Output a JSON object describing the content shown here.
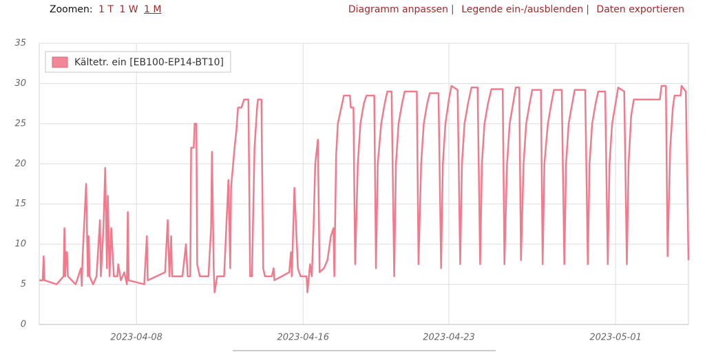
{
  "toolbar": {
    "zoom_label": "Zoomen:",
    "zoom_options": [
      "1 T",
      "1 W",
      "1 M"
    ],
    "separator": "|",
    "actions": [
      "Diagramm anpassen",
      "Legende ein-/ausblenden",
      "Daten exportieren"
    ]
  },
  "chart_data": {
    "type": "line",
    "grid": true,
    "legend": "top-left",
    "xlim": [
      "2023-04-03 08:00",
      "2023-05-04 12:00"
    ],
    "xticks": [
      "2023-04-08",
      "2023-04-16",
      "2023-04-23",
      "2023-05-01"
    ],
    "ylim": [
      0,
      35
    ],
    "yticks": [
      0,
      5,
      10,
      15,
      20,
      25,
      30,
      35
    ],
    "x": [
      "2023-04-03 08:00",
      "2023-04-03 12:00",
      "2023-04-03 13:00",
      "2023-04-03 14:00",
      "2023-04-04 04:00",
      "2023-04-04 12:00",
      "2023-04-04 13:00",
      "2023-04-04 14:00",
      "2023-04-04 15:00",
      "2023-04-04 16:00",
      "2023-04-04 17:00",
      "2023-04-05 02:00",
      "2023-04-05 08:00",
      "2023-04-05 09:00",
      "2023-04-05 10:00",
      "2023-04-05 14:00",
      "2023-04-05 16:00",
      "2023-04-05 17:00",
      "2023-04-05 18:00",
      "2023-04-05 22:00",
      "2023-04-06 02:00",
      "2023-04-06 06:00",
      "2023-04-06 07:00",
      "2023-04-06 10:00",
      "2023-04-06 12:00",
      "2023-04-06 14:00",
      "2023-04-06 15:00",
      "2023-04-06 17:00",
      "2023-04-06 19:00",
      "2023-04-06 22:00",
      "2023-04-07 02:00",
      "2023-04-07 03:00",
      "2023-04-07 06:00",
      "2023-04-07 10:00",
      "2023-04-07 13:00",
      "2023-04-07 14:00",
      "2023-04-07 15:00",
      "2023-04-08 09:00",
      "2023-04-08 12:00",
      "2023-04-08 13:00",
      "2023-04-09 09:00",
      "2023-04-09 12:00",
      "2023-04-09 14:00",
      "2023-04-09 16:00",
      "2023-04-09 17:00",
      "2023-04-10 05:00",
      "2023-04-10 09:00",
      "2023-04-10 11:00",
      "2023-04-10 14:00",
      "2023-04-10 15:00",
      "2023-04-10 18:00",
      "2023-04-10 19:00",
      "2023-04-10 21:00",
      "2023-04-10 22:00",
      "2023-04-11 01:00",
      "2023-04-11 11:00",
      "2023-04-11 14:00",
      "2023-04-11 15:00",
      "2023-04-11 17:00",
      "2023-04-11 18:00",
      "2023-04-11 21:00",
      "2023-04-12 05:00",
      "2023-04-12 10:00",
      "2023-04-12 12:00",
      "2023-04-12 13:00",
      "2023-04-12 17:00",
      "2023-04-12 19:00",
      "2023-04-12 21:00",
      "2023-04-13 01:00",
      "2023-04-13 04:00",
      "2023-04-13 09:00",
      "2023-04-13 11:00",
      "2023-04-13 13:00",
      "2023-04-13 16:00",
      "2023-04-13 19:00",
      "2023-04-13 20:00",
      "2023-04-14 00:00",
      "2023-04-14 02:00",
      "2023-04-14 04:00",
      "2023-04-14 12:00",
      "2023-04-14 14:00",
      "2023-04-14 15:00",
      "2023-04-15 08:00",
      "2023-04-15 10:00",
      "2023-04-15 11:00",
      "2023-04-15 14:00",
      "2023-04-15 18:00",
      "2023-04-15 21:00",
      "2023-04-16 04:00",
      "2023-04-16 05:00",
      "2023-04-16 08:00",
      "2023-04-16 10:00",
      "2023-04-16 12:00",
      "2023-04-16 14:00",
      "2023-04-16 17:00",
      "2023-04-16 19:00",
      "2023-04-17 00:00",
      "2023-04-17 04:00",
      "2023-04-17 08:00",
      "2023-04-17 11:00",
      "2023-04-17 12:00",
      "2023-04-17 14:00",
      "2023-04-17 16:00",
      "2023-04-17 20:00",
      "2023-04-17 23:00",
      "2023-04-18 06:00",
      "2023-04-18 07:00",
      "2023-04-18 10:00",
      "2023-04-18 11:00",
      "2023-04-18 12:00",
      "2023-04-18 15:00",
      "2023-04-18 18:00",
      "2023-04-18 22:00",
      "2023-04-19 01:00",
      "2023-04-19 10:00",
      "2023-04-19 12:00",
      "2023-04-19 14:00",
      "2023-04-19 18:00",
      "2023-04-19 22:00",
      "2023-04-20 01:00",
      "2023-04-20 06:00",
      "2023-04-20 09:00",
      "2023-04-20 11:00",
      "2023-04-20 14:00",
      "2023-04-20 18:00",
      "2023-04-20 21:00",
      "2023-04-21 11:00",
      "2023-04-21 13:00",
      "2023-04-21 16:00",
      "2023-04-21 19:00",
      "2023-04-21 23:00",
      "2023-04-22 02:00",
      "2023-04-22 12:00",
      "2023-04-22 15:00",
      "2023-04-22 17:00",
      "2023-04-22 20:00",
      "2023-04-23 00:00",
      "2023-04-23 03:00",
      "2023-04-23 10:00",
      "2023-04-23 13:00",
      "2023-04-23 15:00",
      "2023-04-23 18:00",
      "2023-04-23 22:00",
      "2023-04-24 02:00",
      "2023-04-24 09:00",
      "2023-04-24 12:00",
      "2023-04-24 14:00",
      "2023-04-24 17:00",
      "2023-04-24 21:00",
      "2023-04-25 01:00",
      "2023-04-25 14:00",
      "2023-04-25 16:00",
      "2023-04-25 19:00",
      "2023-04-25 22:00",
      "2023-04-26 02:00",
      "2023-04-26 05:00",
      "2023-04-26 09:00",
      "2023-04-26 11:00",
      "2023-04-26 14:00",
      "2023-04-26 17:00",
      "2023-04-26 21:00",
      "2023-04-27 00:00",
      "2023-04-27 10:00",
      "2023-04-27 12:00",
      "2023-04-27 14:00",
      "2023-04-27 18:00",
      "2023-04-27 22:00",
      "2023-04-28 01:00",
      "2023-04-28 10:00",
      "2023-04-28 13:00",
      "2023-04-28 15:00",
      "2023-04-28 18:00",
      "2023-04-28 22:00",
      "2023-04-29 01:00",
      "2023-04-29 13:00",
      "2023-04-29 16:00",
      "2023-04-29 18:00",
      "2023-04-29 21:00",
      "2023-04-30 01:00",
      "2023-04-30 04:00",
      "2023-04-30 12:00",
      "2023-04-30 15:00",
      "2023-04-30 17:00",
      "2023-04-30 20:00",
      "2023-05-01 00:00",
      "2023-05-01 03:00",
      "2023-05-01 10:00",
      "2023-05-01 13:00",
      "2023-05-01 15:00",
      "2023-05-01 18:00",
      "2023-05-01 21:00",
      "2023-05-03 03:00",
      "2023-05-03 05:00",
      "2023-05-03 10:00",
      "2023-05-03 12:00",
      "2023-05-03 15:00",
      "2023-05-03 18:00",
      "2023-05-03 20:00",
      "2023-05-04 03:00",
      "2023-05-04 04:00",
      "2023-05-04 09:00",
      "2023-05-04 12:00"
    ],
    "series": [
      {
        "name": "Kältetr. ein [EB100-EP14-BT10]",
        "color": "#f27a8d",
        "values": [
          5.5,
          5.5,
          8.5,
          5.5,
          5,
          6,
          12,
          6,
          9,
          9,
          6,
          5,
          7,
          4.8,
          8.5,
          17.5,
          6,
          11,
          6,
          5,
          6,
          13,
          6,
          12,
          19.5,
          7,
          16,
          6,
          12,
          6,
          6,
          7.5,
          5.5,
          6.5,
          5,
          14,
          5.5,
          5,
          11,
          5.5,
          6.5,
          13,
          6,
          11,
          6,
          6,
          10,
          6,
          6,
          22,
          22,
          25,
          25,
          7.5,
          6,
          6,
          12,
          21.5,
          7,
          4,
          6,
          6,
          18,
          7,
          17,
          22,
          24,
          27,
          27,
          28,
          28,
          6,
          6,
          22,
          27,
          28,
          28,
          7,
          6,
          6,
          7,
          5.5,
          6.5,
          9,
          6,
          17,
          7,
          6,
          6,
          4,
          7.5,
          6,
          12,
          20,
          23,
          6.5,
          7,
          8,
          11,
          12,
          6,
          21,
          25,
          27,
          28.5,
          28.5,
          27,
          27,
          17,
          7.5,
          20,
          25,
          27.5,
          28.5,
          28.5,
          7,
          20,
          25,
          27.5,
          29,
          29,
          6,
          20,
          25,
          27.5,
          29,
          29,
          7.5,
          20,
          25,
          27.5,
          28.8,
          28.8,
          7,
          20,
          25,
          28,
          29.7,
          29.2,
          7.5,
          20,
          25,
          27.5,
          29.5,
          29.5,
          7.5,
          20,
          25,
          27.5,
          29.3,
          29.3,
          7.5,
          20,
          25,
          27.5,
          29.5,
          29.5,
          8,
          20,
          25,
          27.5,
          29.2,
          29.2,
          7.5,
          20,
          25,
          27.5,
          29.2,
          29.2,
          7.5,
          20,
          25,
          27.5,
          29.2,
          29.2,
          7.5,
          20,
          25,
          27.5,
          29,
          29,
          7.5,
          20,
          25,
          27.5,
          29.5,
          29,
          7.5,
          20,
          26,
          28,
          28,
          29.7,
          29.7,
          8.5,
          22,
          27,
          28.5,
          28.5,
          29.7,
          29,
          8
        ]
      }
    ]
  }
}
